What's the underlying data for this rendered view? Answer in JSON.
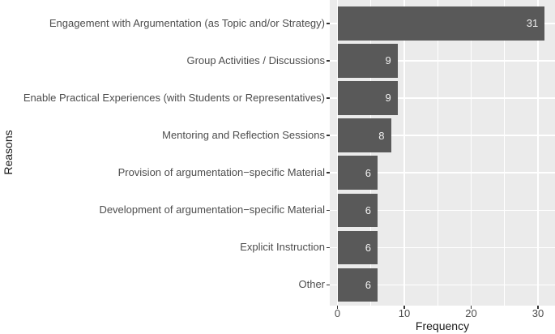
{
  "chart_data": {
    "type": "bar",
    "orientation": "horizontal",
    "xlabel": "Frequency",
    "ylabel": "Reasons",
    "categories": [
      "Engagement with Argumentation (as Topic and/or Strategy)",
      "Group Activities / Discussions",
      "Enable Practical Experiences (with Students or Representatives)",
      "Mentoring and Reflection Sessions",
      "Provision of argumentation−specific Material",
      "Development of argumentation−specific Material",
      "Explicit Instruction",
      "Other"
    ],
    "values": [
      31,
      9,
      9,
      8,
      6,
      6,
      6,
      6
    ],
    "bar_labels": [
      "31",
      "9",
      "9",
      "8",
      "6",
      "6",
      "6",
      "6"
    ],
    "xlim": [
      0,
      31
    ],
    "x_major_ticks": [
      0,
      10,
      20,
      30
    ],
    "x_minor_ticks": [
      5,
      15,
      25
    ],
    "grid": true,
    "legend_position": "none",
    "colors": {
      "bar": "#595959",
      "panel_background": "#EBEBEB",
      "gridline": "#FFFFFF",
      "bar_label_text": "#F2F2F2",
      "axis_text": "#4D4D4D",
      "axis_title": "#1A1A1A",
      "tick_mark": "#333333"
    }
  }
}
